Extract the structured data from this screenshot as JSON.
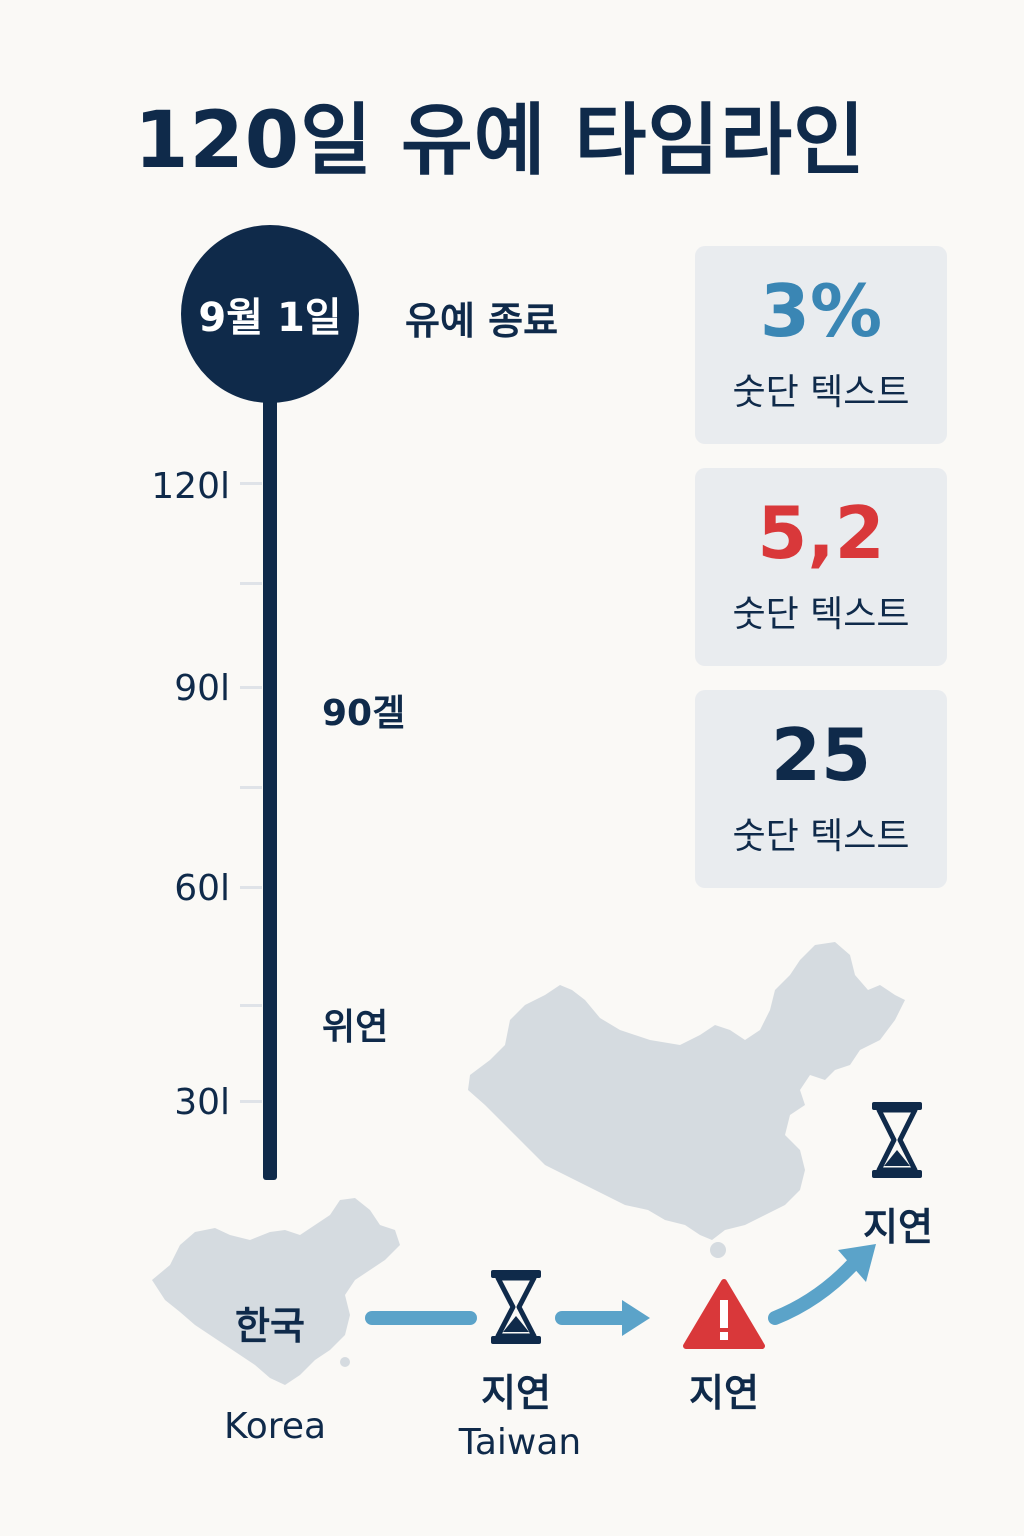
{
  "title": "120일 유예 타임라인",
  "timeline": {
    "top_marker": "9월 1일",
    "end_label": "유예 종료",
    "ticks": [
      {
        "label": "120l"
      },
      {
        "label": "90l"
      },
      {
        "label": "60l"
      },
      {
        "label": "30l"
      }
    ],
    "mid_labels": [
      "90겔",
      "위연"
    ]
  },
  "stats": [
    {
      "value": "3%",
      "label": "숫단 텍스트",
      "color": "#3a86b4"
    },
    {
      "value": "5,2",
      "label": "숫단 텍스트",
      "color": "#d9383a"
    },
    {
      "value": "25",
      "label": "숫단 텍스트",
      "color": "#0f2a4a"
    }
  ],
  "flow": {
    "korea_label": "한국",
    "korea_caption": "Korea",
    "step1_label": "지연",
    "step1_caption": "Taiwan",
    "step2_label": "지연",
    "step3_label": "지연",
    "icons": [
      "hourglass-icon",
      "warning-icon",
      "hourglass-icon"
    ],
    "arrow_color": "#5ba3c9",
    "map_color": "#d5dbe0",
    "warning_color": "#d9383a"
  }
}
